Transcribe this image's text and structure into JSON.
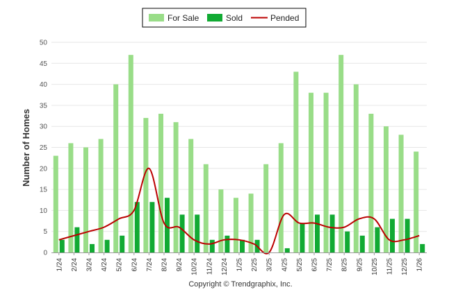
{
  "chart_data": {
    "type": "bar",
    "title": "",
    "xlabel": "",
    "ylabel": "Number of Homes",
    "ylim": [
      0,
      50
    ],
    "yticks": [
      0,
      5,
      10,
      15,
      20,
      25,
      30,
      35,
      40,
      45,
      50
    ],
    "grid": true,
    "legend_position": "top-center",
    "categories": [
      "1/24",
      "2/24",
      "3/24",
      "4/24",
      "5/24",
      "6/24",
      "7/24",
      "8/24",
      "9/24",
      "10/24",
      "11/24",
      "12/24",
      "1/25",
      "2/25",
      "3/25",
      "4/25",
      "5/25",
      "6/25",
      "7/25",
      "8/25",
      "9/25",
      "10/25",
      "11/25",
      "12/25",
      "1/26"
    ],
    "series": [
      {
        "name": "For Sale",
        "type": "bar",
        "color": "#99dd88",
        "values": [
          23,
          26,
          25,
          27,
          40,
          47,
          32,
          33,
          31,
          27,
          21,
          15,
          13,
          14,
          21,
          26,
          43,
          38,
          38,
          47,
          40,
          33,
          30,
          28,
          24
        ]
      },
      {
        "name": "Sold",
        "type": "bar",
        "color": "#11aa33",
        "values": [
          3,
          6,
          2,
          3,
          4,
          12,
          12,
          13,
          9,
          9,
          3,
          4,
          3,
          3,
          0,
          1,
          7,
          9,
          9,
          5,
          4,
          6,
          8,
          8,
          2
        ]
      },
      {
        "name": "Pended",
        "type": "line",
        "color": "#bb0000",
        "values": [
          3,
          4,
          5,
          6,
          8,
          10,
          20,
          7,
          6,
          3,
          2,
          3,
          3,
          2,
          0,
          9,
          7,
          7,
          6,
          6,
          8,
          8,
          3,
          3,
          4
        ]
      }
    ]
  },
  "footer": {
    "copyright": "Copyright © Trendgraphix, Inc."
  }
}
